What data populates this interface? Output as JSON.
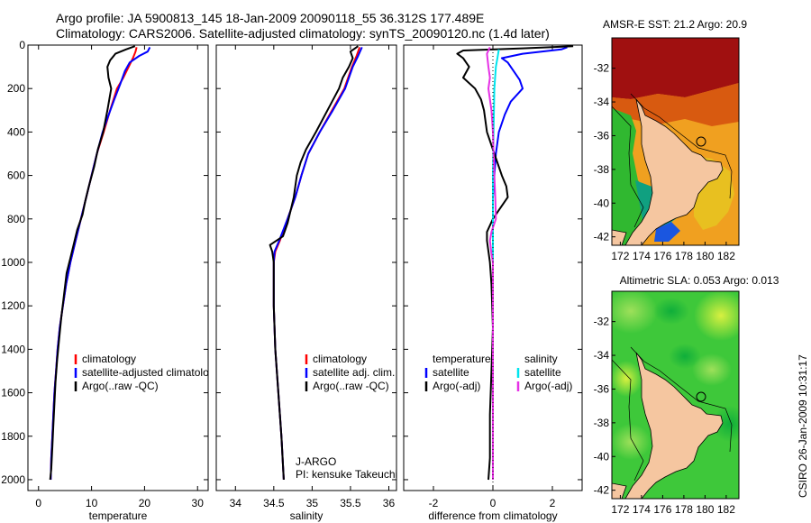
{
  "header": {
    "title_line1": "Argo profile: JA 5900813_145 18-Jan-2009 20090118_55 36.312S 177.489E",
    "title_line2": "Climatology: CARS2006. Satellite-adjusted climatology: synTS_20090120.nc (1.4d later)"
  },
  "credit": "CSIRO 26-Jan-2009 10:31:17",
  "colors": {
    "climatology": "#ff0000",
    "satellite": "#0000ff",
    "argo": "#000000",
    "sal_satellite": "#00e5ee",
    "sal_argo": "#e632e6"
  },
  "chart_data": [
    {
      "id": "temperature",
      "type": "line",
      "xlabel": "temperature",
      "xlim": [
        -2,
        32
      ],
      "ylim": [
        2050,
        0
      ],
      "xticks": [
        0,
        10,
        20,
        30
      ],
      "yticks": [
        0,
        200,
        400,
        600,
        800,
        1000,
        1200,
        1400,
        1600,
        1800,
        2000
      ],
      "legend": [
        "climatology",
        "satellite-adjusted climatolo",
        "Argo(..raw -QC)"
      ],
      "series": [
        {
          "name": "climatology",
          "color": "#ff0000",
          "points": [
            [
              18.5,
              10
            ],
            [
              18.3,
              30
            ],
            [
              17.8,
              60
            ],
            [
              17.0,
              100
            ],
            [
              16.0,
              150
            ],
            [
              14.8,
              200
            ],
            [
              13.5,
              300
            ],
            [
              12.3,
              400
            ],
            [
              11.0,
              500
            ],
            [
              10.0,
              600
            ],
            [
              9.0,
              700
            ],
            [
              8.0,
              800
            ],
            [
              7.0,
              900
            ],
            [
              6.0,
              1000
            ],
            [
              5.2,
              1100
            ],
            [
              4.6,
              1200
            ],
            [
              4.0,
              1300
            ],
            [
              3.6,
              1400
            ],
            [
              3.3,
              1500
            ],
            [
              3.0,
              1600
            ],
            [
              2.8,
              1700
            ],
            [
              2.6,
              1800
            ],
            [
              2.4,
              1900
            ],
            [
              2.3,
              2000
            ]
          ]
        },
        {
          "name": "satellite-adjusted climatolo",
          "color": "#0000ff",
          "points": [
            [
              21.0,
              10
            ],
            [
              20.6,
              30
            ],
            [
              19.0,
              50
            ],
            [
              17.2,
              80
            ],
            [
              16.3,
              120
            ],
            [
              15.4,
              180
            ],
            [
              14.3,
              250
            ],
            [
              13.1,
              330
            ],
            [
              12.1,
              400
            ],
            [
              11.0,
              500
            ],
            [
              10.0,
              600
            ],
            [
              9.0,
              700
            ],
            [
              8.0,
              800
            ],
            [
              7.0,
              900
            ],
            [
              6.0,
              1000
            ],
            [
              5.2,
              1100
            ],
            [
              4.6,
              1200
            ],
            [
              4.0,
              1300
            ],
            [
              3.6,
              1400
            ],
            [
              3.3,
              1500
            ],
            [
              3.0,
              1600
            ],
            [
              2.8,
              1700
            ],
            [
              2.6,
              1800
            ],
            [
              2.4,
              1900
            ],
            [
              2.3,
              2000
            ]
          ]
        },
        {
          "name": "Argo(..raw -QC)",
          "color": "#000000",
          "points": [
            [
              18.2,
              5
            ],
            [
              16.5,
              20
            ],
            [
              14.5,
              40
            ],
            [
              13.5,
              70
            ],
            [
              13.0,
              100
            ],
            [
              13.2,
              150
            ],
            [
              13.7,
              200
            ],
            [
              13.0,
              300
            ],
            [
              12.2,
              400
            ],
            [
              11.2,
              480
            ],
            [
              10.5,
              560
            ],
            [
              9.5,
              650
            ],
            [
              8.8,
              720
            ],
            [
              8.3,
              780
            ],
            [
              7.3,
              850
            ],
            [
              6.8,
              900
            ],
            [
              6.0,
              980
            ],
            [
              5.3,
              1050
            ],
            [
              4.8,
              1150
            ],
            [
              4.3,
              1250
            ],
            [
              3.9,
              1350
            ],
            [
              3.5,
              1450
            ],
            [
              3.2,
              1550
            ],
            [
              3.0,
              1650
            ],
            [
              2.8,
              1750
            ],
            [
              2.6,
              1850
            ],
            [
              2.4,
              1950
            ],
            [
              2.2,
              2000
            ]
          ]
        }
      ]
    },
    {
      "id": "salinity",
      "type": "line",
      "xlabel": "salinity",
      "xlim": [
        33.75,
        36.1
      ],
      "ylim": [
        2050,
        0
      ],
      "xticks": [
        34,
        34.5,
        35,
        35.5,
        36
      ],
      "legend": [
        "climatology",
        "satellite adj. clim.",
        "Argo(..raw -QC)"
      ],
      "annotation": [
        "J-ARGO",
        "PI: kensuke Takeuchi"
      ],
      "series": [
        {
          "name": "climatology",
          "color": "#ff0000",
          "points": [
            [
              35.62,
              10
            ],
            [
              35.58,
              50
            ],
            [
              35.52,
              100
            ],
            [
              35.42,
              200
            ],
            [
              35.26,
              300
            ],
            [
              35.1,
              400
            ],
            [
              34.95,
              500
            ],
            [
              34.86,
              600
            ],
            [
              34.78,
              700
            ],
            [
              34.68,
              800
            ],
            [
              34.58,
              900
            ],
            [
              34.52,
              950
            ],
            [
              34.5,
              1000
            ],
            [
              34.5,
              1200
            ],
            [
              34.52,
              1400
            ],
            [
              34.56,
              1600
            ],
            [
              34.6,
              1800
            ],
            [
              34.63,
              2000
            ]
          ]
        },
        {
          "name": "satellite adj. clim.",
          "color": "#0000ff",
          "points": [
            [
              35.65,
              10
            ],
            [
              35.6,
              50
            ],
            [
              35.53,
              100
            ],
            [
              35.43,
              200
            ],
            [
              35.27,
              300
            ],
            [
              35.1,
              400
            ],
            [
              34.95,
              500
            ],
            [
              34.86,
              600
            ],
            [
              34.78,
              700
            ],
            [
              34.68,
              800
            ],
            [
              34.57,
              900
            ],
            [
              34.51,
              950
            ],
            [
              34.5,
              1000
            ],
            [
              34.5,
              1200
            ],
            [
              34.52,
              1400
            ],
            [
              34.56,
              1600
            ],
            [
              34.6,
              1800
            ],
            [
              34.63,
              2000
            ]
          ]
        },
        {
          "name": "Argo(..raw -QC)",
          "color": "#000000",
          "points": [
            [
              35.6,
              5
            ],
            [
              35.5,
              30
            ],
            [
              35.53,
              60
            ],
            [
              35.48,
              100
            ],
            [
              35.4,
              150
            ],
            [
              35.35,
              200
            ],
            [
              35.2,
              300
            ],
            [
              35.05,
              400
            ],
            [
              34.92,
              480
            ],
            [
              34.85,
              540
            ],
            [
              34.8,
              600
            ],
            [
              34.76,
              700
            ],
            [
              34.72,
              760
            ],
            [
              34.68,
              820
            ],
            [
              34.62,
              880
            ],
            [
              34.45,
              920
            ],
            [
              34.48,
              950
            ],
            [
              34.5,
              1000
            ],
            [
              34.5,
              1200
            ],
            [
              34.52,
              1400
            ],
            [
              34.56,
              1600
            ],
            [
              34.6,
              1800
            ],
            [
              34.63,
              2000
            ]
          ]
        }
      ]
    },
    {
      "id": "difference",
      "type": "line",
      "xlabel": "difference from climatology",
      "xlim": [
        -3,
        3
      ],
      "ylim": [
        2050,
        0
      ],
      "xticks": [
        -2,
        0,
        2
      ],
      "legend_temperature_header": "temperature",
      "legend_salinity_header": "salinity",
      "legend": [
        "satellite",
        "Argo(-adj)",
        "satellite",
        "Argo(-adj)"
      ],
      "series": [
        {
          "name": "temperature satellite",
          "color": "#0000ff",
          "points": [
            [
              2.5,
              10
            ],
            [
              2.3,
              20
            ],
            [
              1.0,
              40
            ],
            [
              0.3,
              60
            ],
            [
              0.5,
              80
            ],
            [
              0.7,
              120
            ],
            [
              0.9,
              160
            ],
            [
              1.0,
              200
            ],
            [
              0.6,
              260
            ],
            [
              0.4,
              320
            ],
            [
              0.2,
              400
            ],
            [
              0.1,
              500
            ],
            [
              0.05,
              600
            ],
            [
              0,
              700
            ],
            [
              0,
              1000
            ],
            [
              0,
              1500
            ],
            [
              0,
              2000
            ]
          ]
        },
        {
          "name": "temperature Argo(-adj)",
          "color": "#000000",
          "points": [
            [
              2.7,
              5
            ],
            [
              1.0,
              15
            ],
            [
              -1.0,
              25
            ],
            [
              -1.2,
              40
            ],
            [
              -1.0,
              60
            ],
            [
              -0.9,
              80
            ],
            [
              -0.8,
              100
            ],
            [
              -1.0,
              150
            ],
            [
              -0.6,
              200
            ],
            [
              -0.4,
              250
            ],
            [
              -0.3,
              300
            ],
            [
              -0.2,
              400
            ],
            [
              0.05,
              500
            ],
            [
              0.2,
              560
            ],
            [
              0.3,
              600
            ],
            [
              0.45,
              650
            ],
            [
              0.5,
              700
            ],
            [
              0.2,
              760
            ],
            [
              0.0,
              800
            ],
            [
              -0.2,
              860
            ],
            [
              -0.2,
              900
            ],
            [
              -0.1,
              1000
            ],
            [
              -0.05,
              1100
            ],
            [
              0,
              1300
            ],
            [
              -0.05,
              1500
            ],
            [
              -0.1,
              1700
            ],
            [
              -0.1,
              1900
            ],
            [
              -0.15,
              2000
            ]
          ]
        },
        {
          "name": "salinity satellite",
          "color": "#00e5ee",
          "points": [
            [
              0.2,
              20
            ],
            [
              0.15,
              60
            ],
            [
              0.1,
              100
            ],
            [
              0.05,
              200
            ],
            [
              0.02,
              400
            ],
            [
              0,
              600
            ],
            [
              0,
              800
            ],
            [
              0,
              1200
            ],
            [
              0,
              1600
            ],
            [
              0,
              2000
            ]
          ]
        },
        {
          "name": "salinity Argo(-adj)",
          "color": "#e632e6",
          "points": [
            [
              -0.1,
              10
            ],
            [
              -0.2,
              40
            ],
            [
              -0.15,
              100
            ],
            [
              -0.1,
              150
            ],
            [
              -0.15,
              200
            ],
            [
              -0.05,
              300
            ],
            [
              0,
              400
            ],
            [
              0.02,
              500
            ],
            [
              0.05,
              600
            ],
            [
              0.08,
              700
            ],
            [
              0.1,
              800
            ],
            [
              -0.05,
              860
            ],
            [
              -0.1,
              900
            ],
            [
              -0.05,
              960
            ],
            [
              0,
              1000
            ],
            [
              0,
              1300
            ],
            [
              0,
              1600
            ],
            [
              0,
              2000
            ]
          ]
        }
      ]
    },
    {
      "id": "sst_map",
      "type": "heatmap",
      "title": "AMSR-E SST: 21.2  Argo: 20.9",
      "xticks": [
        172,
        174,
        176,
        178,
        180,
        182
      ],
      "yticks": [
        -32,
        -34,
        -36,
        -38,
        -40,
        -42
      ],
      "xlim": [
        171.2,
        183.2
      ],
      "ylim": [
        -42.5,
        -30.2
      ],
      "marker": [
        177.489,
        -36.312
      ]
    },
    {
      "id": "sla_map",
      "type": "heatmap",
      "title": "Altimetric SLA: 0.053  Argo: 0.013",
      "xticks": [
        172,
        174,
        176,
        178,
        180,
        182
      ],
      "yticks": [
        -32,
        -34,
        -36,
        -38,
        -40,
        -42
      ],
      "xlim": [
        171.2,
        183.2
      ],
      "ylim": [
        -42.5,
        -30.2
      ],
      "marker": [
        177.489,
        -36.312
      ]
    }
  ]
}
